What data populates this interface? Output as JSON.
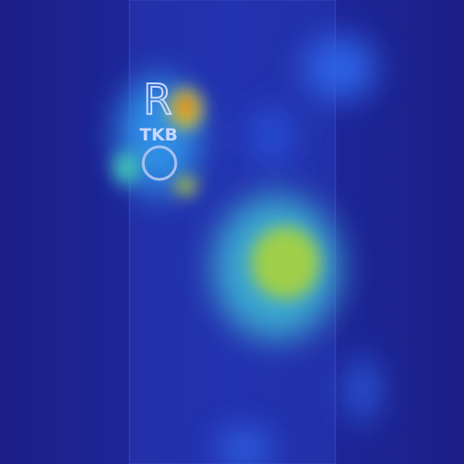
{
  "logo": {
    "letter": "R",
    "text": "TKB"
  }
}
